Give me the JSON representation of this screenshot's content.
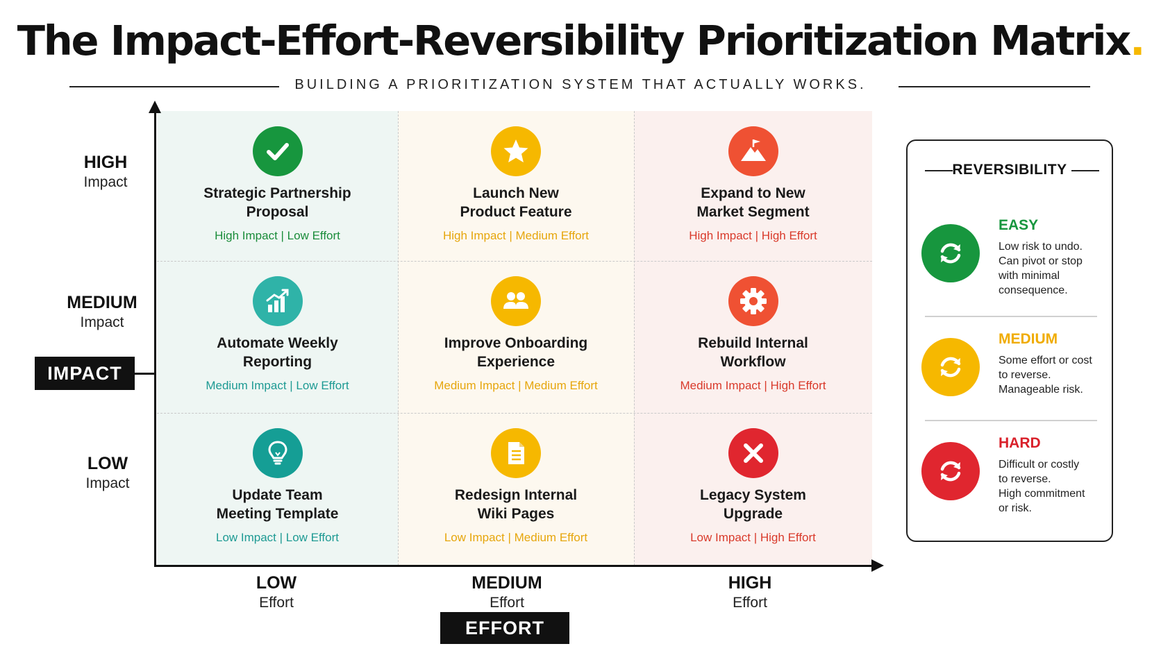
{
  "title": "The Impact-Effort-Reversibility Prioritization Matrix",
  "title_dot": ".",
  "subtitle": "BUILDING A PRIORITIZATION SYSTEM THAT ACTUALLY WORKS.",
  "impact_axis": {
    "label": "IMPACT",
    "levels": [
      {
        "level": "HIGH",
        "word": "Impact"
      },
      {
        "level": "MEDIUM",
        "word": "Impact"
      },
      {
        "level": "LOW",
        "word": "Impact"
      }
    ]
  },
  "effort_axis": {
    "label": "EFFORT",
    "levels": [
      {
        "level": "LOW",
        "word": "Effort"
      },
      {
        "level": "MEDIUM",
        "word": "Effort"
      },
      {
        "level": "HIGH",
        "word": "Effort"
      }
    ]
  },
  "colors": {
    "green": "#17963e",
    "yellow": "#f6b800",
    "orange_red": "#ef5133",
    "red": "#e0262f",
    "teal": "#159e95",
    "teal_light": "#2fb3a8",
    "cell_green_bg": "#eef6f3",
    "cell_yellow_bg": "#fdf8ef",
    "cell_red_bg": "#fbf0ee",
    "tag_green": "#1a8c3a",
    "tag_yellow": "#e6a60c",
    "tag_red": "#d93a2b",
    "tag_teal": "#1d9a93"
  },
  "matrix": {
    "rows": [
      [
        {
          "lines": [
            "Strategic Partnership",
            "Proposal"
          ],
          "tag": "High Impact | Low Effort",
          "icon": "checkmark-icon"
        },
        {
          "lines": [
            "Launch New",
            "Product Feature"
          ],
          "tag": "High Impact | Medium Effort",
          "icon": "star-icon"
        },
        {
          "lines": [
            "Expand to New",
            "Market Segment"
          ],
          "tag": "High Impact | High Effort",
          "icon": "mountain-flag-icon"
        }
      ],
      [
        {
          "lines": [
            "Automate Weekly",
            "Reporting"
          ],
          "tag": "Medium Impact | Low Effort",
          "icon": "bar-chart-growth-icon"
        },
        {
          "lines": [
            "Improve Onboarding",
            "Experience"
          ],
          "tag": "Medium Impact | Medium Effort",
          "icon": "people-icon"
        },
        {
          "lines": [
            "Rebuild Internal",
            "Workflow"
          ],
          "tag": "Medium Impact | High Effort",
          "icon": "gear-icon"
        }
      ],
      [
        {
          "lines": [
            "Update Team",
            "Meeting Template"
          ],
          "tag": "Low Impact | Low Effort",
          "icon": "lightbulb-icon"
        },
        {
          "lines": [
            "Redesign Internal",
            "Wiki Pages"
          ],
          "tag": "Low Impact | Medium Effort",
          "icon": "document-icon"
        },
        {
          "lines": [
            "Legacy System",
            "Upgrade"
          ],
          "tag": "Low Impact | High Effort",
          "icon": "x-mark-icon"
        }
      ]
    ]
  },
  "reversibility": {
    "title": "REVERSIBILITY",
    "items": [
      {
        "label": "EASY",
        "desc": [
          "Low risk to undo.",
          "Can pivot or stop",
          "with minimal",
          "consequence."
        ],
        "icon": "refresh-arrows-icon"
      },
      {
        "label": "MEDIUM",
        "desc": [
          "Some effort or cost",
          "to reverse.",
          "Manageable risk."
        ],
        "icon": "refresh-arrows-icon"
      },
      {
        "label": "HARD",
        "desc": [
          "Difficult or costly",
          "to reverse.",
          "High commitment",
          "or risk."
        ],
        "icon": "refresh-arrows-icon"
      }
    ]
  }
}
